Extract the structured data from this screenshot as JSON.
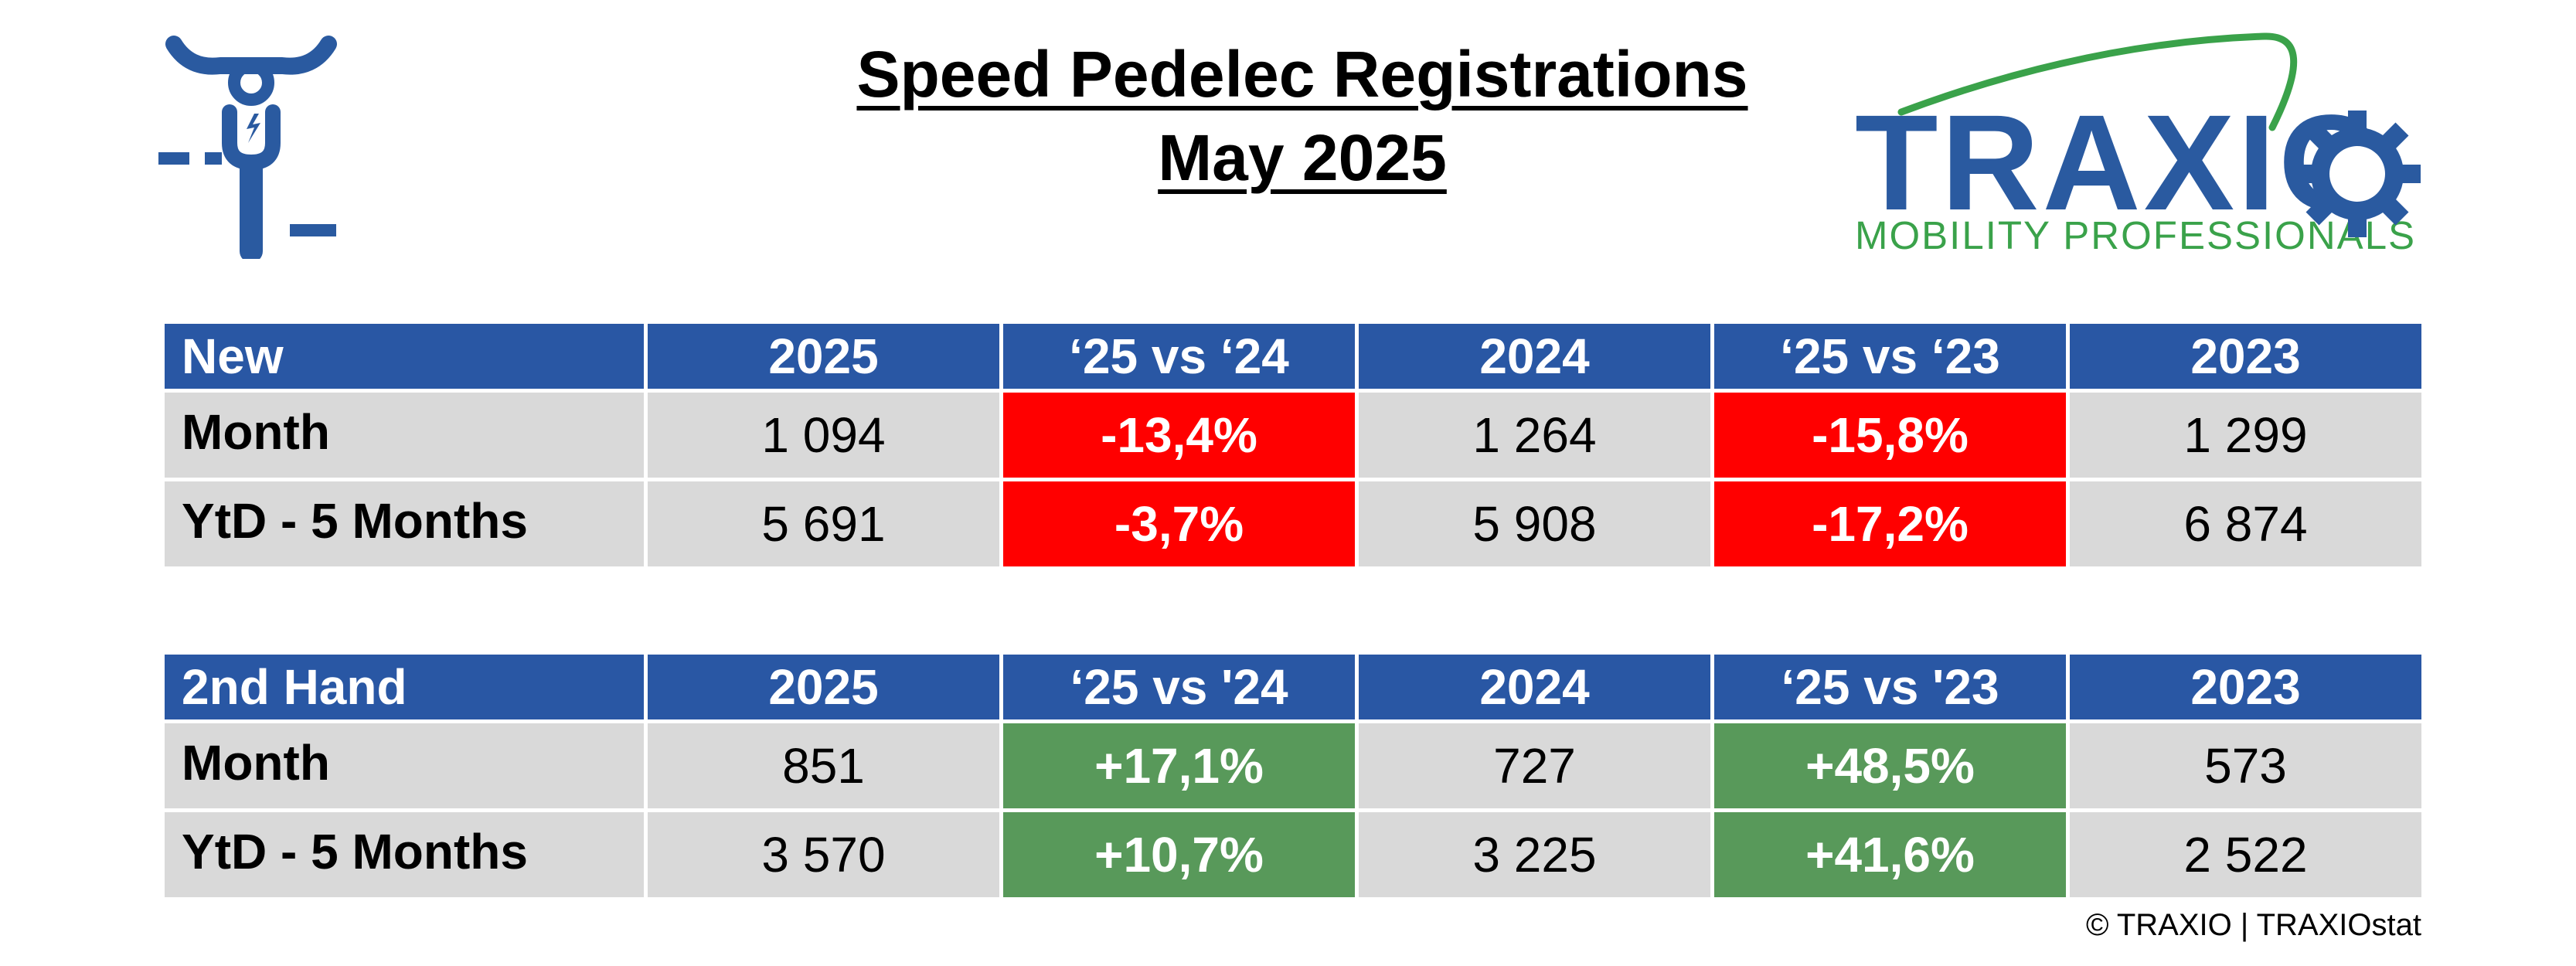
{
  "title": {
    "line1": "Speed Pedelec Registrations",
    "line2": "May 2025"
  },
  "logo": {
    "brand": "TRAXIO",
    "tagline": "MOBILITY PROFESSIONALS",
    "colors": {
      "brand": "#2a5aa0",
      "tagline": "#3aa24a"
    }
  },
  "icons": {
    "top_left": "scooter-icon",
    "logo_gear": "gear-icon"
  },
  "colors": {
    "header_bg": "#2957a4",
    "cell_bg": "#d9d9d9",
    "negative": "#ff0000",
    "positive": "#58995a"
  },
  "new_table": {
    "headers": [
      "New",
      "2025",
      "‘25 vs ‘24",
      "2024",
      "‘25 vs ‘23",
      "2023"
    ],
    "rows": [
      {
        "label": "Month",
        "cells": [
          "1 094",
          "-13,4%",
          "1 264",
          "-15,8%",
          "1 299"
        ]
      },
      {
        "label": "YtD - 5 Months",
        "cells": [
          "5 691",
          "-3,7%",
          "5 908",
          "-17,2%",
          "6 874"
        ]
      }
    ]
  },
  "used_table": {
    "headers": [
      "2nd Hand",
      "2025",
      "‘25 vs '24",
      "2024",
      "‘25 vs '23",
      "2023"
    ],
    "rows": [
      {
        "label": "Month",
        "cells": [
          "851",
          "+17,1%",
          "727",
          "+48,5%",
          "573"
        ]
      },
      {
        "label": "YtD - 5 Months",
        "cells": [
          "3 570",
          "+10,7%",
          "3 225",
          "+41,6%",
          "2 522"
        ]
      }
    ]
  },
  "footer": {
    "copyright": "© TRAXIO | TRAXIOstat"
  }
}
